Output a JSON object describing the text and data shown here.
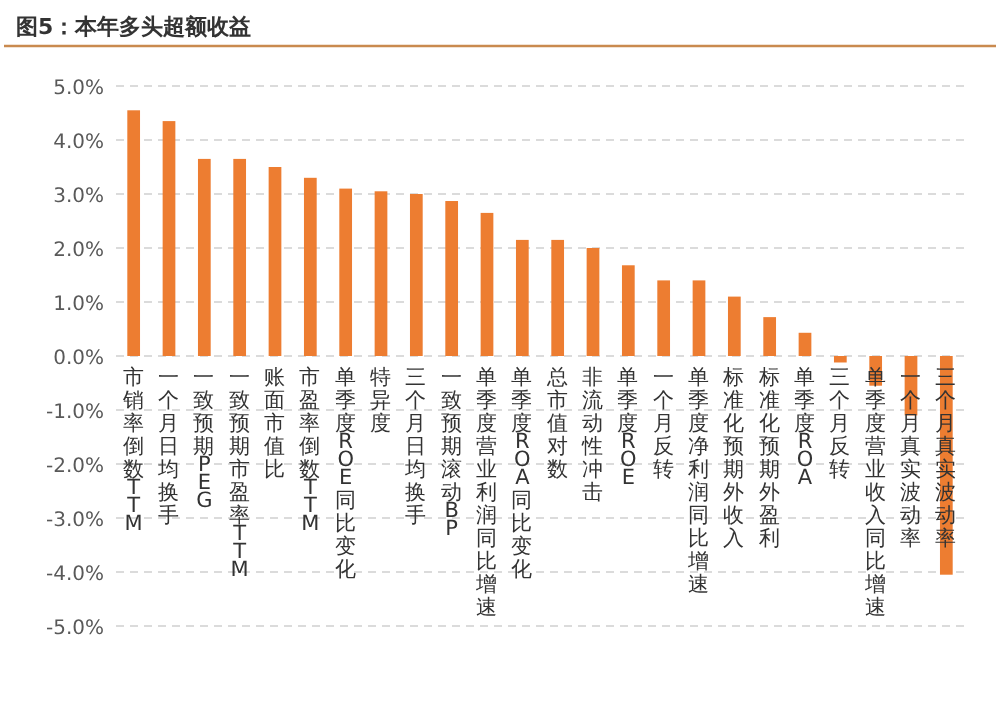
{
  "chart_data": {
    "type": "bar",
    "title": "图5：本年多头超额收益",
    "categories": [
      "市销率倒数TTM",
      "一个月日均换手",
      "一致预期PEG",
      "一致预期市盈率TTM",
      "账面市值比",
      "市盈率倒数TTM",
      "单季度ROE同比变化",
      "特异度",
      "三个月日均换手",
      "一致预期滚动BP",
      "单季度营业利润同比增速",
      "单季度ROA同比变化",
      "总市值对数",
      "非流动性冲击",
      "单季度ROE",
      "一个月反转",
      "单季度净利润同比增速",
      "标准化预期外收入",
      "标准化预期外盈利",
      "单季度ROA",
      "三个月反转",
      "单季度营业收入同比增速",
      "一个月真实波动率",
      "三个月真实波动率"
    ],
    "values": [
      4.55,
      4.35,
      3.65,
      3.65,
      3.5,
      3.3,
      3.1,
      3.05,
      3.0,
      2.87,
      2.65,
      2.15,
      2.15,
      2.0,
      1.68,
      1.4,
      1.4,
      1.1,
      0.72,
      0.43,
      -0.12,
      -0.55,
      -1.1,
      -4.05
    ],
    "color": "#ed7d31",
    "ylim": [
      -5,
      5
    ],
    "yticks": [
      {
        "value": -5,
        "label": "-5.0%"
      },
      {
        "value": -4,
        "label": "-4.0%"
      },
      {
        "value": -3,
        "label": "-3.0%"
      },
      {
        "value": -2,
        "label": "-2.0%"
      },
      {
        "value": -1,
        "label": "-1.0%"
      },
      {
        "value": 0,
        "label": "0.0%"
      },
      {
        "value": 1,
        "label": "1.0%"
      },
      {
        "value": 2,
        "label": "2.0%"
      },
      {
        "value": 3,
        "label": "3.0%"
      },
      {
        "value": 4,
        "label": "4.0%"
      },
      {
        "value": 5,
        "label": "5.0%"
      }
    ],
    "grid": "y"
  }
}
